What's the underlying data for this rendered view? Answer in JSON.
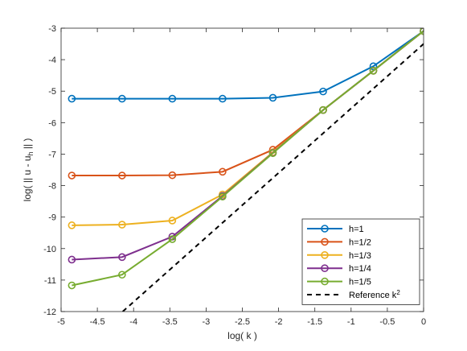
{
  "chart_data": {
    "type": "line",
    "xlabel": "log( k )",
    "ylabel_parts": {
      "prefix": "log( || u - u",
      "sub": "h",
      "suffix": " || )"
    },
    "xlim": [
      -5,
      0
    ],
    "ylim": [
      -12,
      -3
    ],
    "xticks": [
      -5,
      -4.5,
      -4,
      -3.5,
      -3,
      -2.5,
      -2,
      -1.5,
      -1,
      -0.5,
      0
    ],
    "xtick_labels": [
      "-5",
      "-4.5",
      "-4",
      "-3.5",
      "-3",
      "-2.5",
      "-2",
      "-1.5",
      "-1",
      "-0.5",
      "0"
    ],
    "yticks": [
      -12,
      -11,
      -10,
      -9,
      -8,
      -7,
      -6,
      -5,
      -4,
      -3
    ],
    "ytick_labels": [
      "-12",
      "-11",
      "-10",
      "-9",
      "-8",
      "-7",
      "-6",
      "-5",
      "-4",
      "-3"
    ],
    "grid": false,
    "legend_position": "bottom-right",
    "x": [
      -4.852,
      -4.159,
      -3.466,
      -2.773,
      -2.079,
      -1.386,
      -0.693,
      0
    ],
    "series": [
      {
        "name": "h=1",
        "color": "#0072BD",
        "marker": "circle",
        "values": [
          -5.24,
          -5.24,
          -5.24,
          -5.24,
          -5.21,
          -5.01,
          -4.21,
          -3.09
        ]
      },
      {
        "name": "h=1/2",
        "color": "#D95319",
        "marker": "circle",
        "values": [
          -7.68,
          -7.68,
          -7.67,
          -7.56,
          -6.86,
          -5.6,
          -4.35,
          -3.09
        ]
      },
      {
        "name": "h=1/3",
        "color": "#EDB120",
        "marker": "circle",
        "values": [
          -9.26,
          -9.24,
          -9.11,
          -8.28,
          -6.94,
          -5.6,
          -4.35,
          -3.09
        ]
      },
      {
        "name": "h=1/4",
        "color": "#7E2F8E",
        "marker": "circle",
        "values": [
          -10.35,
          -10.27,
          -9.62,
          -8.33,
          -6.96,
          -5.6,
          -4.35,
          -3.09
        ]
      },
      {
        "name": "h=1/5",
        "color": "#77AC30",
        "marker": "circle",
        "values": [
          -11.17,
          -10.83,
          -9.7,
          -8.35,
          -6.97,
          -5.6,
          -4.35,
          -3.09
        ]
      }
    ],
    "reference": {
      "label_prefix": "Reference k",
      "label_sup": "2",
      "color": "#000000",
      "style": "dashed",
      "x": [
        -4.15,
        0
      ],
      "y": [
        -12,
        -3.5
      ]
    }
  }
}
